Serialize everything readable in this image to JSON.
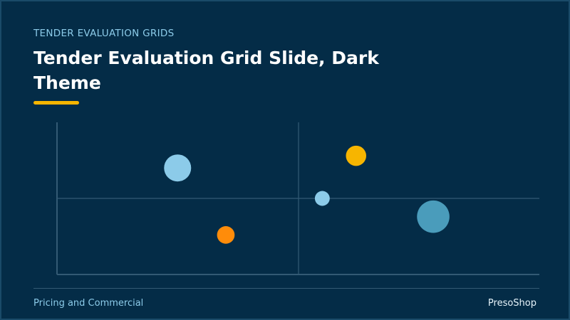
{
  "header": {
    "eyebrow": "TENDER EVALUATION GRIDS",
    "title": "Tender Evaluation Grid Slide, Dark Theme"
  },
  "footer": {
    "left": "Pricing and Commercial",
    "right": "PresoShop"
  },
  "colors": {
    "background": "#042c47",
    "accent": "#f7b500",
    "orange": "#ff8c0a",
    "light_blue": "#8ccbe9",
    "teal_blue": "#4a9cbb",
    "axis": "#335a74"
  },
  "chart_data": {
    "type": "scatter",
    "xlim": [
      0,
      1
    ],
    "ylim": [
      0,
      1
    ],
    "quadrant_split": {
      "x": 0.5,
      "y": 0.5
    },
    "points": [
      {
        "x": 0.25,
        "y": 0.7,
        "size": 1.0,
        "color": "#8ccbe9"
      },
      {
        "x": 0.35,
        "y": 0.26,
        "size": 0.65,
        "color": "#ff8c0a"
      },
      {
        "x": 0.55,
        "y": 0.5,
        "size": 0.55,
        "color": "#8ccbe9"
      },
      {
        "x": 0.62,
        "y": 0.78,
        "size": 0.75,
        "color": "#f7b500"
      },
      {
        "x": 0.78,
        "y": 0.38,
        "size": 1.2,
        "color": "#4a9cbb"
      }
    ]
  }
}
